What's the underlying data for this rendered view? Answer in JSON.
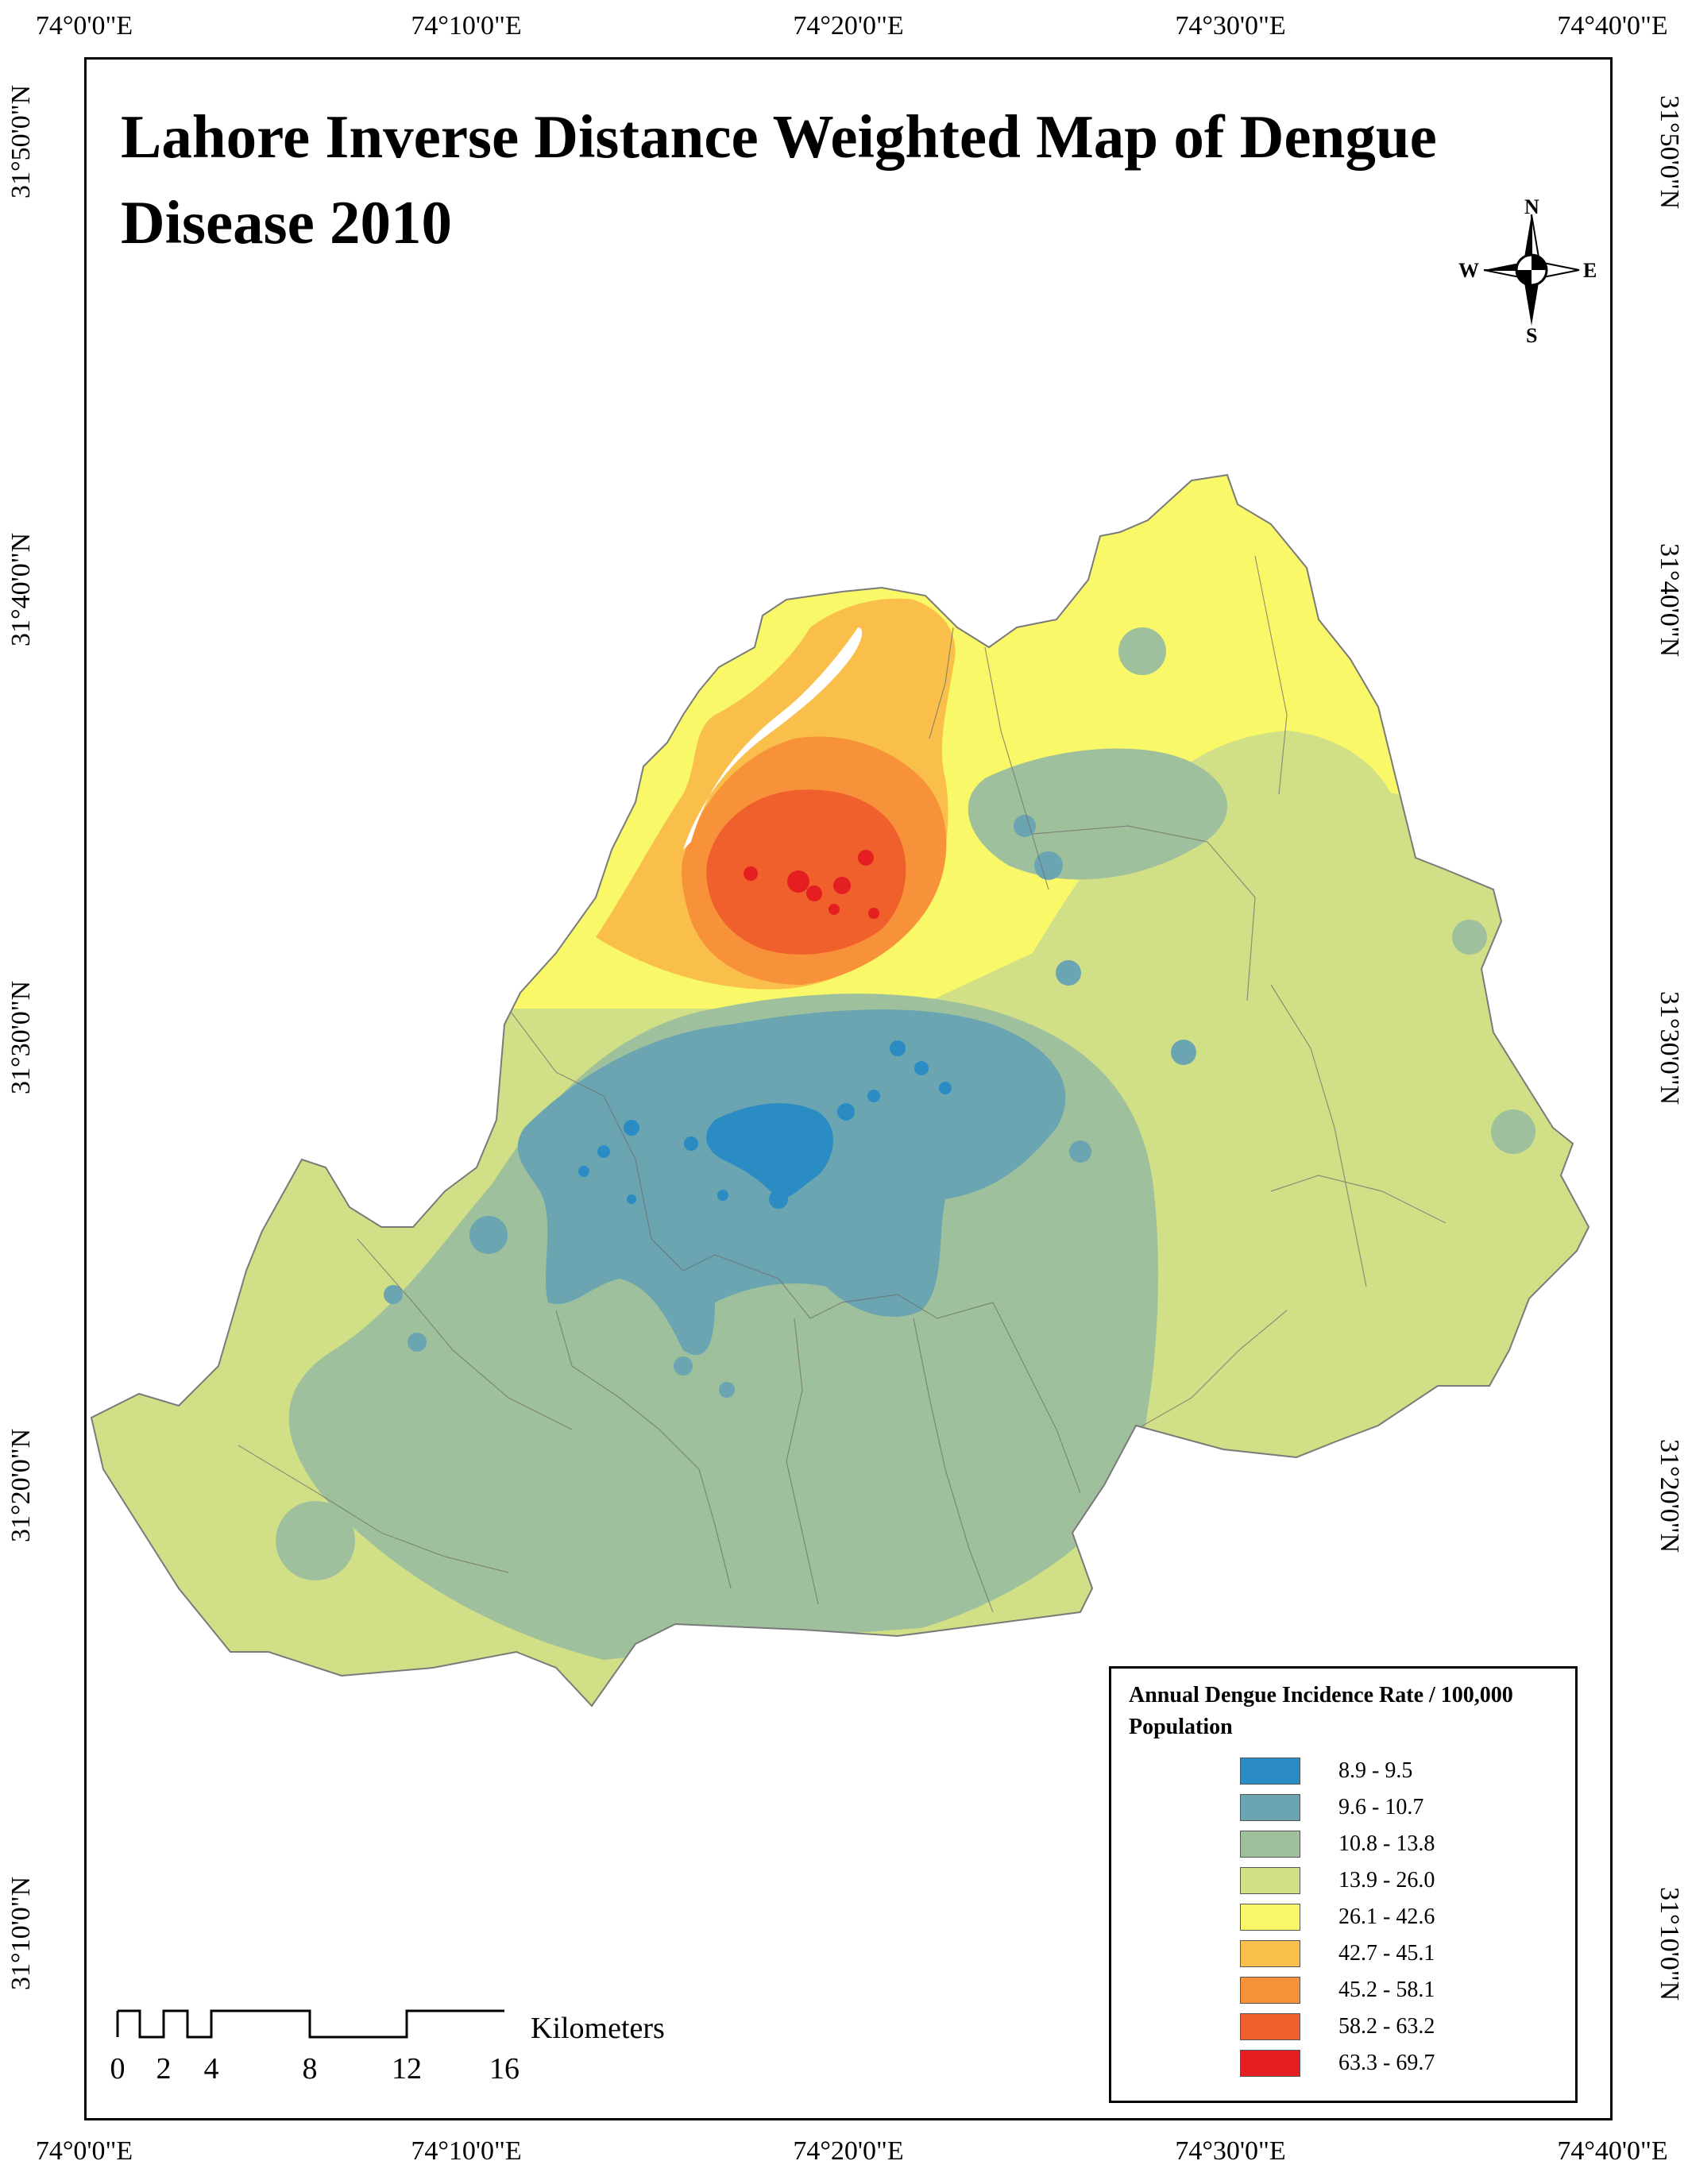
{
  "map": {
    "title": "Lahore Inverse Distance Weighted Map of Dengue Disease 2010",
    "graticule": {
      "longitude_labels": [
        "74°0'0\"E",
        "74°10'0\"E",
        "74°20'0\"E",
        "74°30'0\"E",
        "74°40'0\"E"
      ],
      "latitude_labels": [
        "31°50'0\"N",
        "31°40'0\"N",
        "31°30'0\"N",
        "31°20'0\"N",
        "31°10'0\"N"
      ]
    },
    "north_arrow": {
      "n": "N",
      "s": "S",
      "e": "E",
      "w": "W"
    },
    "scale_bar": {
      "unit": "Kilometers",
      "ticks": [
        "0",
        "2",
        "4",
        "8",
        "12",
        "16"
      ]
    },
    "legend": {
      "title": "Annual Dengue Incidence Rate / 100,000 Population",
      "classes": [
        {
          "label": "8.9 - 9.5",
          "color": "#2b8cc4"
        },
        {
          "label": "9.6 - 10.7",
          "color": "#6aa5b1"
        },
        {
          "label": "10.8 - 13.8",
          "color": "#9fc09c"
        },
        {
          "label": "13.9 - 26.0",
          "color": "#d1df86"
        },
        {
          "label": "26.1 - 42.6",
          "color": "#f8f868"
        },
        {
          "label": "42.7 - 45.1",
          "color": "#f9bf4a"
        },
        {
          "label": "45.2 - 58.1",
          "color": "#f7923a"
        },
        {
          "label": "58.2 - 63.2",
          "color": "#f0602c"
        },
        {
          "label": "63.3 - 69.7",
          "color": "#e51e22"
        }
      ]
    }
  }
}
